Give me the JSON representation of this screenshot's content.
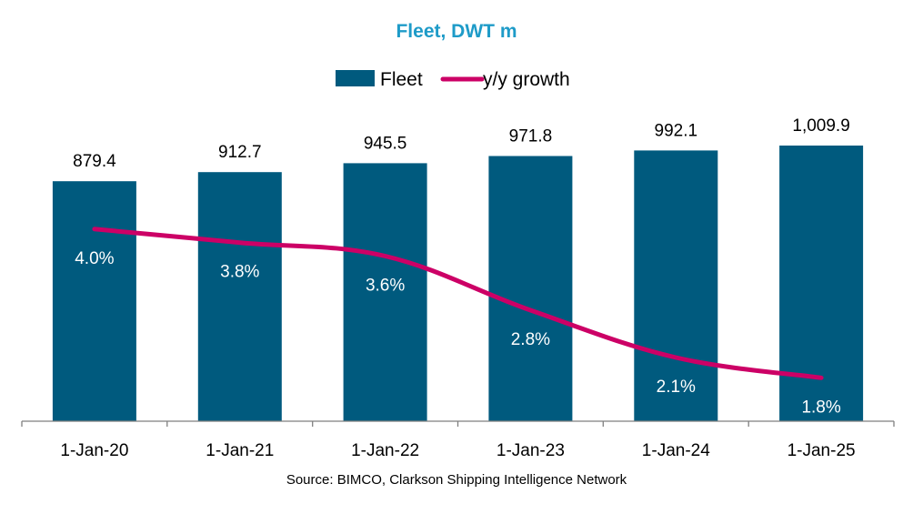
{
  "chart_data": {
    "type": "bar",
    "title": "Fleet, DWT m",
    "categories": [
      "1-Jan-20",
      "1-Jan-21",
      "1-Jan-22",
      "1-Jan-23",
      "1-Jan-24",
      "1-Jan-25"
    ],
    "series": [
      {
        "name": "Fleet",
        "kind": "bar",
        "axis": "left",
        "color": "#005a7e",
        "values": [
          879.4,
          912.7,
          945.5,
          971.8,
          992.1,
          1009.9
        ],
        "labels": [
          "879.4",
          "912.7",
          "945.5",
          "971.8",
          "992.1",
          "1,009.9"
        ]
      },
      {
        "name": "y/y growth",
        "kind": "line",
        "axis": "right",
        "color": "#cc0066",
        "values": [
          4.0,
          3.8,
          3.6,
          2.8,
          2.1,
          1.8
        ],
        "labels": [
          "4.0%",
          "3.8%",
          "3.6%",
          "2.8%",
          "2.1%",
          "1.8%"
        ]
      }
    ],
    "ylim": [
      0,
      1100
    ],
    "y2lim": [
      0,
      7.0
    ],
    "xlabel": "",
    "ylabel": "",
    "grid": false,
    "legend": "top-center",
    "source": "Source: BIMCO, Clarkson Shipping Intelligence Network",
    "title_color": "#1e9bc8",
    "axis_color": "#7f7f7f"
  }
}
